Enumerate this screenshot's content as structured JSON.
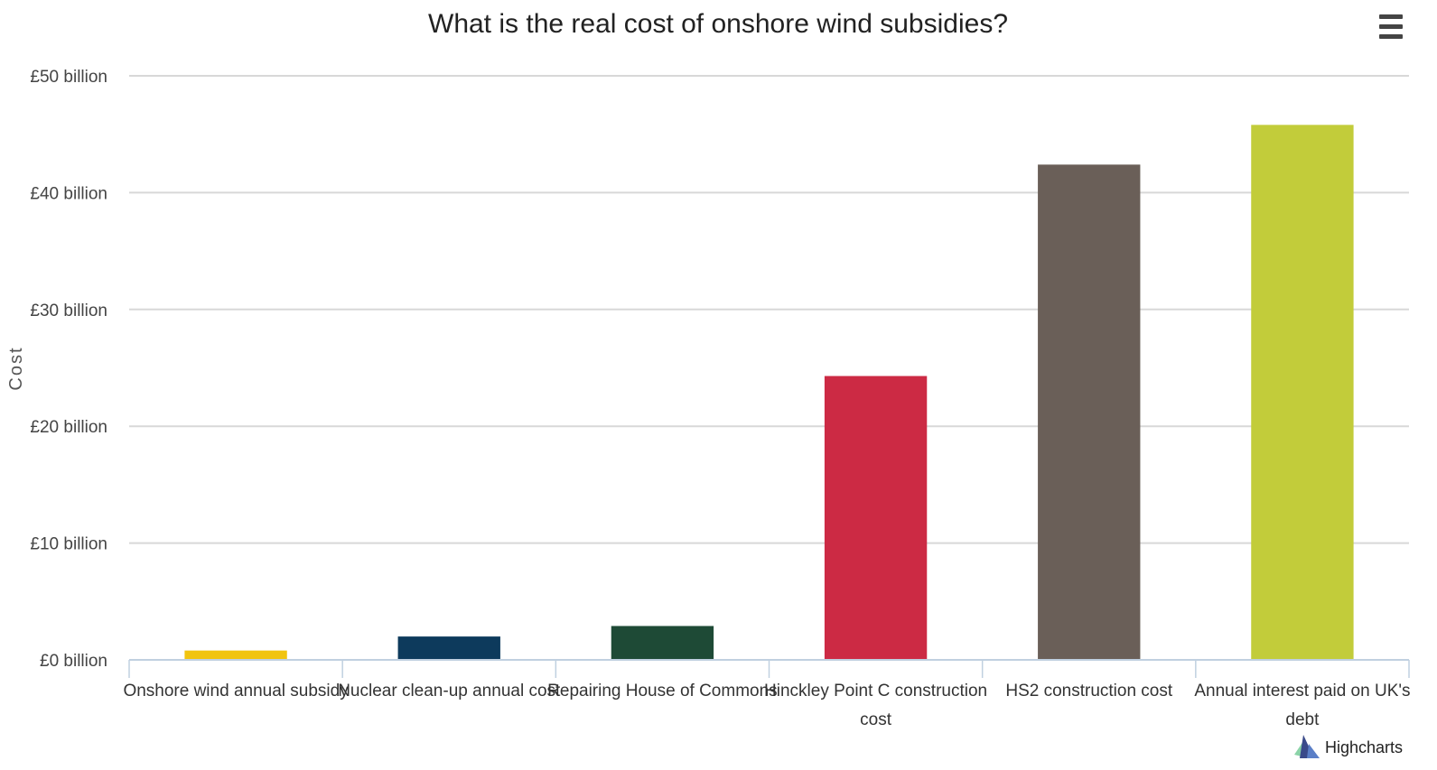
{
  "chart_data": {
    "type": "bar",
    "title": "What is the real cost of onshore wind subsidies?",
    "ylabel": "Cost",
    "xlabel": "",
    "ylim": [
      0,
      50
    ],
    "ytick_values": [
      0,
      10,
      20,
      30,
      40,
      50
    ],
    "ytick_labels": [
      "£0 billion",
      "£10 billion",
      "£20 billion",
      "£30 billion",
      "£40 billion",
      "£50 billion"
    ],
    "categories": [
      "Onshore wind annual subsidy",
      "Nuclear clean-up annual cost",
      "Repairing House of Commons",
      "Hinckley Point C construction cost",
      "HS2 construction cost",
      "Annual interest paid on UK's debt"
    ],
    "category_label_lines": [
      [
        "Onshore wind annual subsidy"
      ],
      [
        "Nuclear clean-up annual cost"
      ],
      [
        "Repairing House of Commons"
      ],
      [
        "Hinckley Point C construction",
        "cost"
      ],
      [
        "HS2 construction cost"
      ],
      [
        "Annual interest paid on UK's",
        "debt"
      ]
    ],
    "values": [
      0.8,
      2.0,
      2.9,
      24.3,
      42.4,
      45.8
    ],
    "unit": "£ billion",
    "colors": [
      "#f1c40f",
      "#0d3a5c",
      "#1e4a36",
      "#cc2a44",
      "#6a5f58",
      "#c2cc3a"
    ],
    "grid": true,
    "legend": "none"
  },
  "menu": {
    "icon": "hamburger-menu-icon"
  },
  "credits": {
    "text": "Highcharts",
    "icon": "highcharts-logo-icon"
  }
}
